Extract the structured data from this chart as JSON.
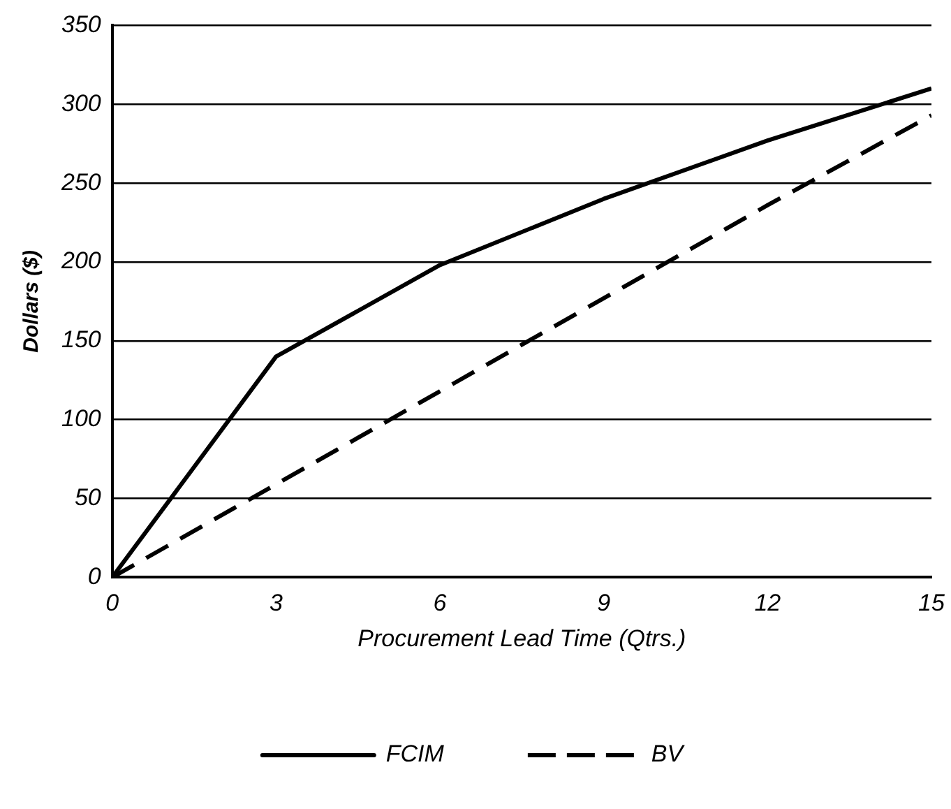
{
  "chart_data": {
    "type": "line",
    "xlabel": "Procurement Lead Time (Qtrs.)",
    "ylabel": "Dollars ($)",
    "x": [
      0,
      3,
      6,
      9,
      12,
      15
    ],
    "series": [
      {
        "name": "FCIM",
        "color": "#000000",
        "line_style": "solid",
        "values": [
          0,
          140,
          198,
          240,
          277,
          310
        ]
      },
      {
        "name": "BV",
        "color": "#000000",
        "line_style": "dashed",
        "values": [
          0,
          59,
          118,
          177,
          236,
          293
        ]
      }
    ],
    "xlim": [
      0,
      15
    ],
    "xticks": [
      0,
      3,
      6,
      9,
      12,
      15
    ],
    "ylim": [
      0,
      350
    ],
    "yticks": [
      0,
      50,
      100,
      150,
      200,
      250,
      300,
      350
    ],
    "grid": "y",
    "legend": "bottom",
    "marker": "none"
  }
}
